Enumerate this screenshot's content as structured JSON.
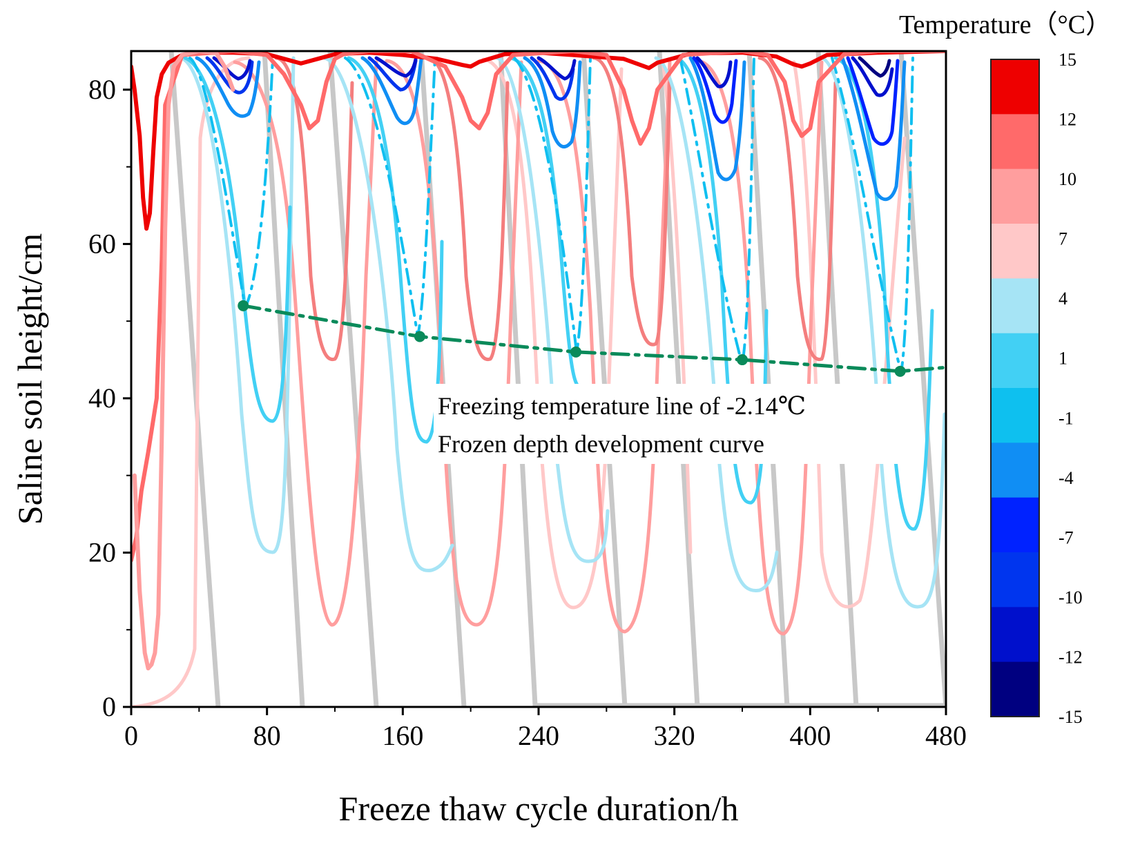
{
  "chart_data": {
    "type": "line",
    "title": "",
    "xlabel": "Freeze thaw cycle duration/h",
    "ylabel": "Saline soil height/cm",
    "xlim": [
      0,
      480
    ],
    "ylim": [
      0,
      85
    ],
    "xticks": [
      0,
      80,
      160,
      240,
      320,
      400,
      480
    ],
    "yticks": [
      0,
      20,
      40,
      60,
      80
    ],
    "xtick_labels": [
      "0",
      "80",
      "160",
      "240",
      "320",
      "400",
      "480"
    ],
    "ytick_labels": [
      "0",
      "20",
      "40",
      "60",
      "80"
    ],
    "colorbar": {
      "title": "Temperature（°C）",
      "levels": [
        "15",
        "12",
        "10",
        "7",
        "4",
        "1",
        "-1",
        "-4",
        "-7",
        "-10",
        "-12",
        "-15"
      ],
      "colors": [
        "#ee0000",
        "#ff6a6a",
        "#ff9e9e",
        "#ffc8c8",
        "#a6e4f5",
        "#42d0f4",
        "#0ec0ef",
        "#108ef4",
        "#0022ff",
        "#0035ee",
        "#0010cc",
        "#000080"
      ]
    },
    "annotations": [
      "Freezing temperature line of -2.14℃",
      "Frozen depth development curve"
    ],
    "series": [
      {
        "name": "Frozen depth development curve",
        "color": "#0a8a5a",
        "x": [
          66,
          170,
          262,
          360,
          453,
          480
        ],
        "y": [
          52,
          48,
          46,
          45,
          43.5,
          44
        ]
      },
      {
        "name": "15",
        "color": "#ee0000",
        "x": [
          0,
          2,
          5,
          7,
          9,
          11,
          13,
          15,
          18,
          22,
          30,
          40,
          60,
          80,
          90,
          100,
          110,
          120,
          140,
          160,
          180,
          195,
          200,
          205,
          220,
          240,
          260,
          290,
          300,
          305,
          310,
          330,
          360,
          380,
          390,
          395,
          400,
          410,
          440,
          480
        ],
        "y": [
          83,
          80,
          74,
          66,
          62,
          64,
          72,
          79,
          82,
          83.5,
          84.5,
          84.8,
          84.8,
          84.6,
          84,
          83.4,
          84,
          84.6,
          84.8,
          84.5,
          84,
          83.2,
          83,
          83.6,
          84.6,
          84.8,
          84.5,
          84,
          83.2,
          82.8,
          83.5,
          84.7,
          84.8,
          84.3,
          83.3,
          83,
          83.4,
          84.5,
          84.8,
          85
        ]
      },
      {
        "name": "12",
        "color": "#ff6a6a",
        "x": [
          0,
          3,
          6,
          10,
          15,
          18,
          20,
          30,
          60,
          80,
          90,
          100,
          105,
          110,
          115,
          120,
          125,
          140,
          165,
          185,
          195,
          200,
          205,
          210,
          215,
          225,
          260,
          280,
          290,
          295,
          300,
          305,
          310,
          325,
          360,
          375,
          385,
          390,
          395,
          400,
          405,
          420,
          440,
          480
        ],
        "y": [
          19,
          22,
          28,
          33,
          40,
          58,
          78,
          84.5,
          85,
          84.5,
          82,
          78,
          75,
          76,
          81,
          84,
          84.6,
          85,
          85,
          83,
          79,
          76,
          75,
          77,
          82,
          84.5,
          85,
          84.5,
          80,
          76,
          73,
          75,
          80,
          84.5,
          85,
          84.5,
          81,
          76,
          74,
          75,
          81,
          84.6,
          85,
          85
        ]
      },
      {
        "name": "10",
        "color": "#ff9e9e",
        "x": [
          2,
          5,
          8,
          10,
          12,
          14,
          16,
          18,
          20,
          22,
          25,
          30,
          40,
          50,
          55,
          60
        ],
        "y": [
          30,
          15,
          7,
          5,
          5.5,
          7,
          12,
          35,
          62,
          78,
          83,
          84.5,
          85,
          84.8,
          83,
          80
        ]
      }
    ]
  }
}
